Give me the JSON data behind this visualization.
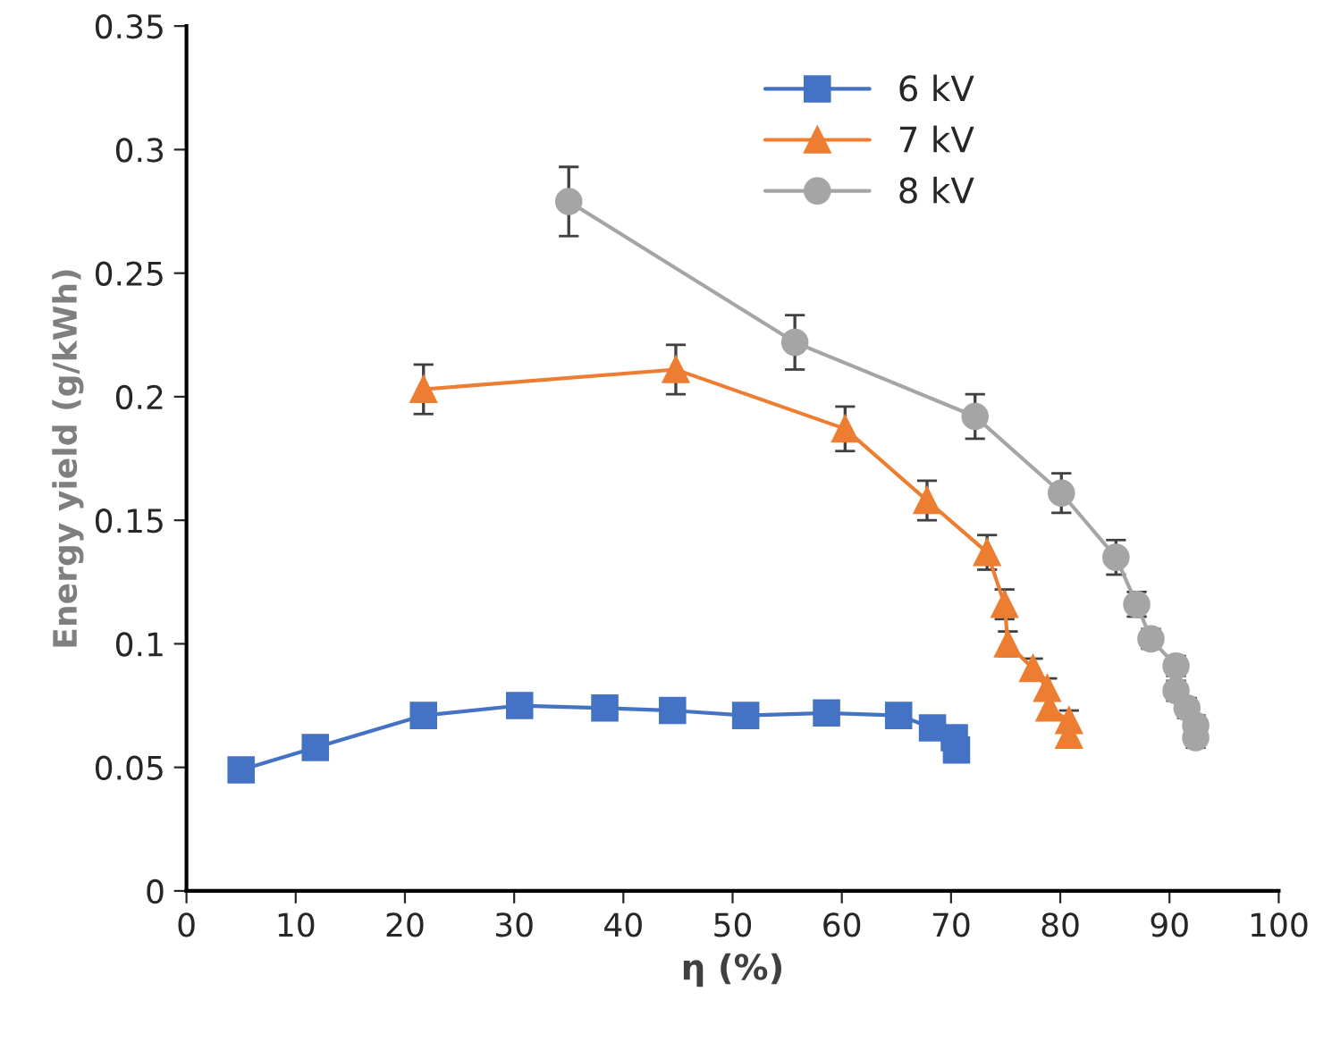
{
  "chart_data": {
    "type": "line",
    "xlabel": "η (%)",
    "ylabel": "Energy yield (g/kWh)",
    "xlim": [
      0,
      100
    ],
    "xticks": [
      0,
      10,
      20,
      30,
      40,
      50,
      60,
      70,
      80,
      90,
      100
    ],
    "ylim": [
      0,
      0.35
    ],
    "yticks": [
      0,
      0.05,
      0.1,
      0.15,
      0.2,
      0.25,
      0.3,
      0.35
    ],
    "grid": false,
    "legend": "top right",
    "series": [
      {
        "name": "6 kV",
        "color": "#4472c4",
        "marker": "square",
        "x": [
          5,
          11.8,
          21.7,
          30.5,
          38.3,
          44.5,
          51.2,
          58.6,
          65.2,
          68.3,
          70.3,
          70.5
        ],
        "values": [
          0.049,
          0.058,
          0.071,
          0.075,
          0.074,
          0.073,
          0.071,
          0.072,
          0.071,
          0.066,
          0.062,
          0.057
        ]
      },
      {
        "name": "7 kV",
        "color": "#ed7d31",
        "marker": "triangle",
        "x": [
          21.7,
          44.8,
          60.3,
          67.8,
          73.3,
          74.9,
          75.2,
          77.5,
          78.8,
          79.0,
          80.8,
          80.8
        ],
        "values": [
          0.203,
          0.211,
          0.187,
          0.158,
          0.137,
          0.116,
          0.1,
          0.09,
          0.082,
          0.074,
          0.069,
          0.063
        ],
        "errors": [
          0.01,
          0.01,
          0.009,
          0.008,
          0.007,
          0.006,
          0.005,
          0.004,
          0.004,
          null,
          0.004,
          null
        ]
      },
      {
        "name": "8 kV",
        "color": "#a5a5a5",
        "marker": "circle",
        "x": [
          35.0,
          55.7,
          72.2,
          80.1,
          85.1,
          87.0,
          88.3,
          90.6,
          90.6,
          91.6,
          92.4,
          92.4
        ],
        "values": [
          0.279,
          0.222,
          0.192,
          0.161,
          0.135,
          0.116,
          0.102,
          0.091,
          0.081,
          0.074,
          0.067,
          0.062
        ],
        "errors": [
          0.014,
          0.011,
          0.009,
          0.008,
          0.007,
          0.005,
          0.004,
          0.004,
          0.004,
          0.004,
          0.004,
          0.004
        ]
      }
    ]
  }
}
